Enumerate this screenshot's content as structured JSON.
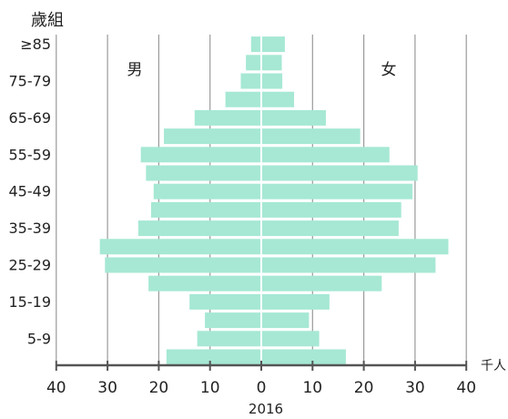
{
  "chart_data": {
    "type": "bar",
    "orientation": "horizontal",
    "layout": "population-pyramid",
    "title": "",
    "ylabel": "歲組",
    "xlabel": "2016",
    "x_unit": "千人",
    "xlim": [
      -40,
      40
    ],
    "x_ticks": [
      "40",
      "30",
      "20",
      "10",
      "0",
      "10",
      "20",
      "30",
      "40"
    ],
    "grid": true,
    "bar_color": "#a6e8d4",
    "categories": [
      "0-4",
      "5-9",
      "10-14",
      "15-19",
      "20-24",
      "25-29",
      "30-34",
      "35-39",
      "40-44",
      "45-49",
      "50-54",
      "55-59",
      "60-64",
      "65-69",
      "70-74",
      "75-79",
      "80-84",
      "≥85"
    ],
    "category_labels_shown": [
      "≥85",
      "75-79",
      "65-69",
      "55-59",
      "45-49",
      "35-39",
      "25-29",
      "15-19",
      "5-9"
    ],
    "series": [
      {
        "name": "男",
        "side": "left",
        "values": [
          18.5,
          12.5,
          11,
          14,
          22,
          30.5,
          31.5,
          24,
          21.5,
          21,
          22.5,
          23.5,
          19,
          13,
          7,
          4,
          3,
          2
        ]
      },
      {
        "name": "女",
        "side": "right",
        "values": [
          16.5,
          11.3,
          9.3,
          13.3,
          23.5,
          34,
          36.5,
          26.8,
          27.3,
          29.5,
          30.5,
          25,
          19.3,
          12.6,
          6.4,
          4.1,
          4,
          4.6
        ]
      }
    ]
  }
}
